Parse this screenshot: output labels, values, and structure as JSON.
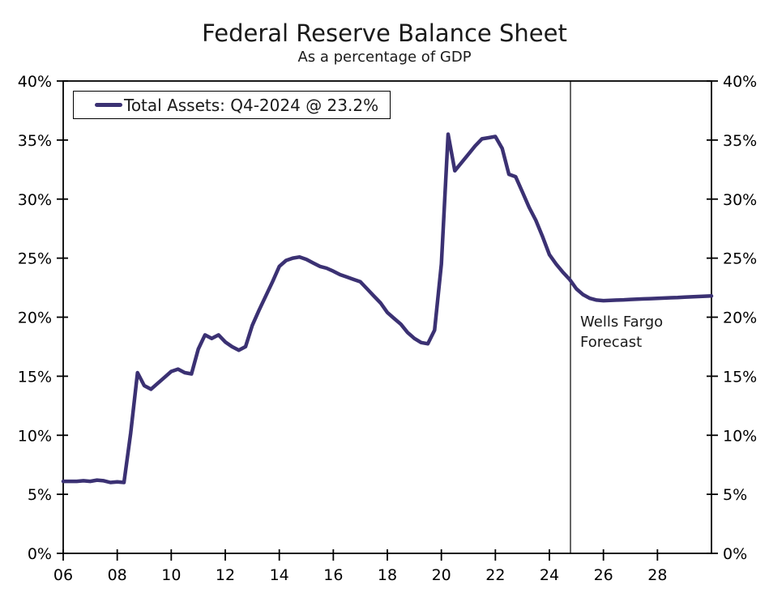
{
  "title": "Federal Reserve Balance Sheet",
  "subtitle": "As a percentage of GDP",
  "legend": {
    "label": "Total Assets: Q4-2024 @ 23.2%",
    "swatch": "series-line-sample"
  },
  "annotation": {
    "line1": "Wells Fargo",
    "line2": "Forecast"
  },
  "colors": {
    "series": "#3B3173",
    "axis": "#000000",
    "text": "#1a1a1a",
    "background": "#FFFFFF"
  },
  "chart_data": {
    "type": "line",
    "title": "Federal Reserve Balance Sheet",
    "subtitle": "As a percentage of GDP",
    "xlabel": "",
    "ylabel": "",
    "xlim": [
      2006,
      2030
    ],
    "ylim": [
      0,
      40
    ],
    "grid": false,
    "legend_position": "top-left",
    "x_ticks": [
      2006,
      2008,
      2010,
      2012,
      2014,
      2016,
      2018,
      2020,
      2022,
      2024,
      2026,
      2028
    ],
    "x_tick_labels": [
      "06",
      "08",
      "10",
      "12",
      "14",
      "16",
      "18",
      "20",
      "22",
      "24",
      "26",
      "28"
    ],
    "y_ticks": [
      0,
      5,
      10,
      15,
      20,
      25,
      30,
      35,
      40
    ],
    "y_tick_labels": [
      "0%",
      "5%",
      "10%",
      "15%",
      "20%",
      "25%",
      "30%",
      "35%",
      "40%"
    ],
    "y_axis_mirrored_right": true,
    "forecast_divider_x": 2024.78,
    "forecast_label": "Wells Fargo Forecast",
    "series": [
      {
        "name": "Total Assets: Q4-2024 @ 23.2%",
        "color": "#3B3173",
        "units": "percent of GDP",
        "frequency": "quarterly",
        "points": [
          [
            2006.0,
            6.1
          ],
          [
            2006.25,
            6.1
          ],
          [
            2006.5,
            6.1
          ],
          [
            2006.75,
            6.15
          ],
          [
            2007.0,
            6.1
          ],
          [
            2007.25,
            6.2
          ],
          [
            2007.5,
            6.15
          ],
          [
            2007.75,
            6.0
          ],
          [
            2008.0,
            6.05
          ],
          [
            2008.25,
            6.0
          ],
          [
            2008.5,
            10.2
          ],
          [
            2008.75,
            15.3
          ],
          [
            2009.0,
            14.2
          ],
          [
            2009.25,
            13.9
          ],
          [
            2009.5,
            14.4
          ],
          [
            2009.75,
            14.9
          ],
          [
            2010.0,
            15.4
          ],
          [
            2010.25,
            15.6
          ],
          [
            2010.5,
            15.3
          ],
          [
            2010.75,
            15.2
          ],
          [
            2011.0,
            17.3
          ],
          [
            2011.25,
            18.5
          ],
          [
            2011.5,
            18.2
          ],
          [
            2011.75,
            18.5
          ],
          [
            2012.0,
            17.9
          ],
          [
            2012.25,
            17.5
          ],
          [
            2012.5,
            17.2
          ],
          [
            2012.75,
            17.5
          ],
          [
            2013.0,
            19.3
          ],
          [
            2013.25,
            20.6
          ],
          [
            2013.5,
            21.8
          ],
          [
            2013.75,
            23.0
          ],
          [
            2014.0,
            24.3
          ],
          [
            2014.25,
            24.8
          ],
          [
            2014.5,
            25.0
          ],
          [
            2014.75,
            25.1
          ],
          [
            2015.0,
            24.9
          ],
          [
            2015.25,
            24.6
          ],
          [
            2015.5,
            24.3
          ],
          [
            2015.75,
            24.15
          ],
          [
            2016.0,
            23.9
          ],
          [
            2016.25,
            23.6
          ],
          [
            2016.5,
            23.4
          ],
          [
            2016.75,
            23.2
          ],
          [
            2017.0,
            23.0
          ],
          [
            2017.25,
            22.4
          ],
          [
            2017.5,
            21.8
          ],
          [
            2017.75,
            21.2
          ],
          [
            2018.0,
            20.4
          ],
          [
            2018.25,
            19.9
          ],
          [
            2018.5,
            19.4
          ],
          [
            2018.75,
            18.7
          ],
          [
            2019.0,
            18.2
          ],
          [
            2019.25,
            17.85
          ],
          [
            2019.5,
            17.75
          ],
          [
            2019.75,
            18.9
          ],
          [
            2020.0,
            24.5
          ],
          [
            2020.25,
            35.5
          ],
          [
            2020.5,
            32.4
          ],
          [
            2020.75,
            33.1
          ],
          [
            2021.0,
            33.8
          ],
          [
            2021.25,
            34.5
          ],
          [
            2021.5,
            35.1
          ],
          [
            2021.75,
            35.2
          ],
          [
            2022.0,
            35.3
          ],
          [
            2022.25,
            34.3
          ],
          [
            2022.5,
            32.1
          ],
          [
            2022.75,
            31.9
          ],
          [
            2023.0,
            30.6
          ],
          [
            2023.25,
            29.3
          ],
          [
            2023.5,
            28.2
          ],
          [
            2023.75,
            26.8
          ],
          [
            2024.0,
            25.3
          ],
          [
            2024.25,
            24.5
          ],
          [
            2024.5,
            23.8
          ],
          [
            2024.75,
            23.2
          ],
          [
            2025.0,
            22.4
          ],
          [
            2025.25,
            21.9
          ],
          [
            2025.5,
            21.6
          ],
          [
            2025.75,
            21.45
          ],
          [
            2026.0,
            21.4
          ],
          [
            2026.25,
            21.42
          ],
          [
            2026.5,
            21.45
          ],
          [
            2026.75,
            21.47
          ],
          [
            2027.0,
            21.5
          ],
          [
            2027.25,
            21.52
          ],
          [
            2027.5,
            21.55
          ],
          [
            2027.75,
            21.57
          ],
          [
            2028.0,
            21.6
          ],
          [
            2028.25,
            21.62
          ],
          [
            2028.5,
            21.65
          ],
          [
            2028.75,
            21.67
          ],
          [
            2029.0,
            21.7
          ],
          [
            2029.25,
            21.72
          ],
          [
            2029.5,
            21.75
          ],
          [
            2029.75,
            21.78
          ],
          [
            2030.0,
            21.8
          ]
        ]
      }
    ]
  }
}
